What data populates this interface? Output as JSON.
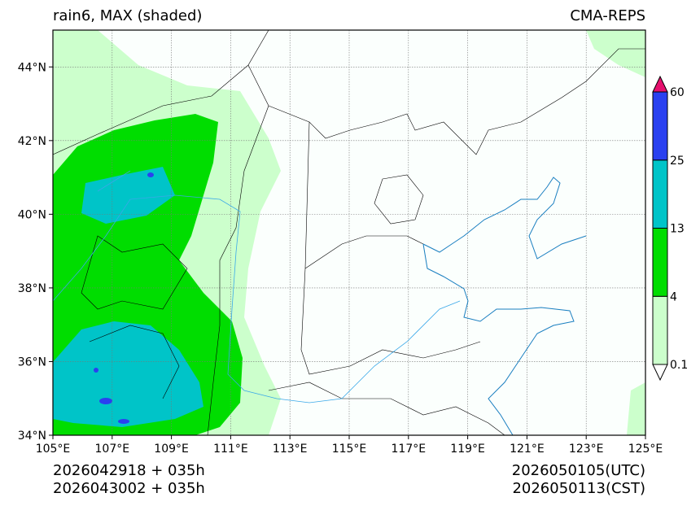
{
  "header": {
    "title": "rain6, MAX (shaded)",
    "source": "CMA-REPS"
  },
  "map": {
    "lon_range": [
      105,
      125
    ],
    "lat_range": [
      34,
      45
    ],
    "lon_ticks": [
      "105°E",
      "107°E",
      "109°E",
      "111°E",
      "113°E",
      "115°E",
      "117°E",
      "119°E",
      "121°E",
      "123°E",
      "125°E"
    ],
    "lat_ticks": [
      "34°N",
      "36°N",
      "38°N",
      "40°N",
      "42°N",
      "44°N"
    ],
    "lon_tick_values": [
      105,
      107,
      109,
      111,
      113,
      115,
      117,
      119,
      121,
      123,
      125
    ],
    "lat_tick_values": [
      34,
      36,
      38,
      40,
      42,
      44
    ]
  },
  "colorbar": {
    "levels": [
      "0.1",
      "4",
      "13",
      "25",
      "60"
    ],
    "colors": [
      "#ccffcc",
      "#00dd00",
      "#00c4c8",
      "#2a40f0"
    ],
    "under_color": "#ffffff",
    "over_color": "#e6106e"
  },
  "footer": {
    "init_utc": "2026042918  +  035h",
    "init_cst": "2026043002  +  035h",
    "valid_utc": "2026050105(UTC)",
    "valid_cst": "2026050113(CST)"
  }
}
